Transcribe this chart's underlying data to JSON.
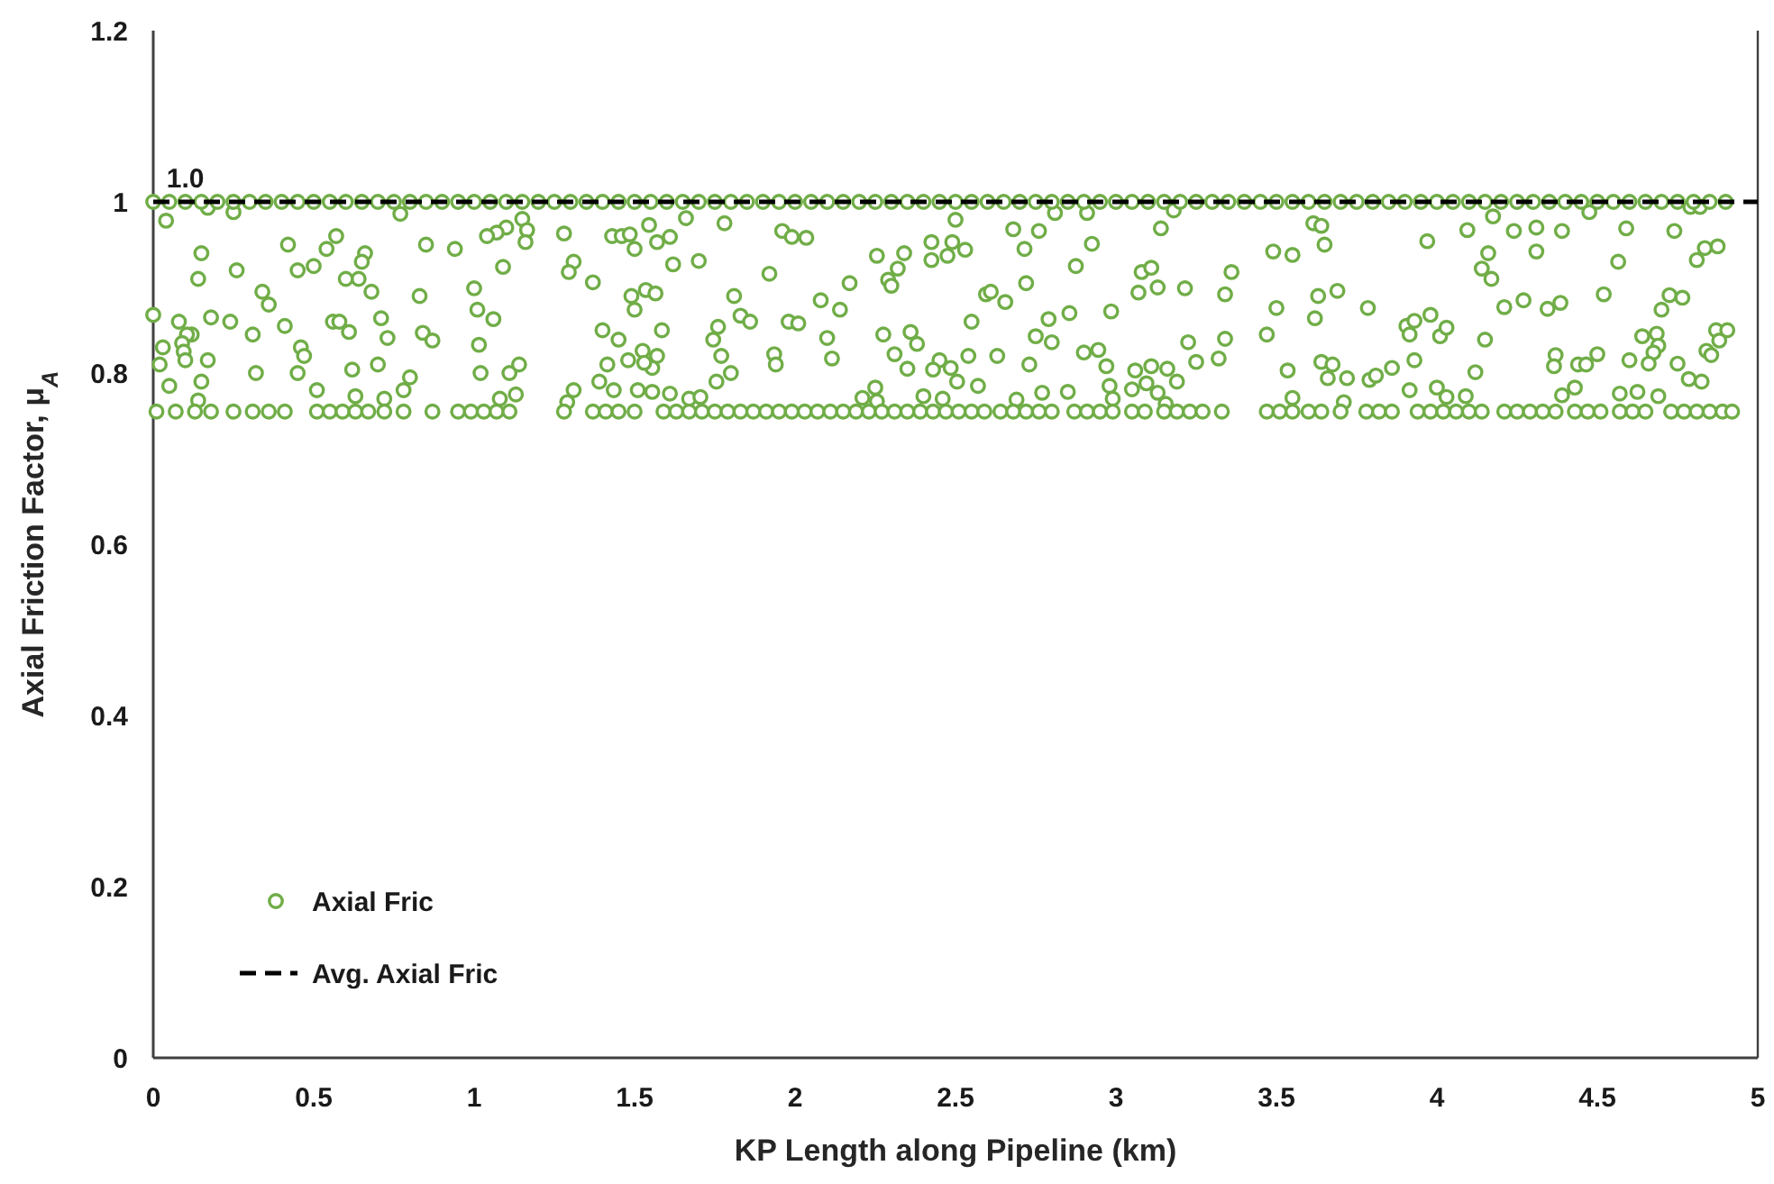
{
  "chart_data": {
    "type": "scatter",
    "xlabel": "KP Length along Pipeline (km)",
    "ylabel": "Axial Friction Factor, μ$_{A}$",
    "xlim": [
      0,
      5
    ],
    "xticks": [
      0,
      0.5,
      1,
      1.5,
      2,
      2.5,
      3,
      3.5,
      4,
      4.5,
      5
    ],
    "ylim": [
      0,
      1.2
    ],
    "yticks": [
      0,
      0.2,
      0.4,
      0.6,
      0.8,
      1,
      1.2
    ],
    "grid": false,
    "legend": "bottom left",
    "marker": "circle",
    "annotations": [
      {
        "text": "1.0",
        "x": 0.1,
        "y": 1.0
      }
    ],
    "series": [
      {
        "name": "Axial Fric",
        "color": "#70ad47",
        "x": [
          0.04,
          0.15,
          0.14,
          0.26,
          0.42,
          0.57,
          0.54,
          0.5,
          0.45,
          0.66,
          0.65,
          0.64,
          0.6,
          0.68,
          0.85,
          0.94,
          0.83,
          0.34,
          0.36,
          0,
          0.08,
          0.18,
          0.24,
          0.12,
          0.105,
          0.09,
          0.03,
          0.095,
          0.02,
          0.1,
          0.17,
          0.05,
          0.15,
          0.31,
          0.41,
          0.46,
          0.47,
          0.32,
          0.45,
          0.51,
          0.56,
          0.58,
          0.61,
          0.71,
          0.73,
          0.62,
          0.7,
          0.63,
          0.78,
          0.8,
          0.84,
          0.87,
          0.72,
          0.14,
          0.17,
          0.25,
          0.77,
          1.15,
          1.165,
          1.16,
          1.1,
          1.07,
          1.04,
          1.28,
          1.43,
          1.46,
          1.485,
          1.545,
          1.57,
          1.61,
          1.5,
          1.66,
          1.78,
          1.96,
          1.99,
          1.09,
          1.31,
          1.295,
          1.37,
          1.62,
          1.7,
          1.92,
          1,
          1.01,
          1.06,
          1.015,
          1.02,
          1.11,
          1.14,
          1.08,
          1.13,
          1.31,
          1.29,
          1.4,
          1.45,
          1.49,
          1.535,
          1.565,
          1.5,
          1.585,
          1.525,
          1.57,
          1.555,
          1.53,
          1.48,
          1.415,
          1.39,
          1.435,
          1.51,
          1.555,
          1.61,
          1.67,
          1.705,
          1.81,
          1.83,
          1.86,
          1.76,
          1.745,
          1.77,
          1.8,
          1.755,
          1.935,
          1.94,
          1.98,
          2.01,
          2.035,
          2.5,
          2.425,
          2.49,
          2.53,
          2.475,
          2.425,
          2.255,
          2.34,
          2.32,
          2.17,
          2.29,
          2.3,
          2.68,
          2.76,
          2.81,
          2.91,
          2.715,
          2.925,
          2.875,
          2.72,
          2.595,
          2.61,
          2.655,
          2.08,
          2.14,
          2.55,
          2.1,
          2.115,
          2.275,
          2.36,
          2.38,
          2.31,
          2.35,
          2.45,
          2.43,
          2.485,
          2.54,
          2.63,
          2.505,
          2.57,
          2.79,
          2.855,
          2.985,
          2.75,
          2.8,
          2.73,
          2.9,
          2.945,
          2.97,
          2.98,
          2.99,
          2.25,
          2.21,
          2.255,
          2.4,
          2.46,
          2.69,
          2.77,
          2.85,
          3.18,
          3.14,
          3.615,
          3.64,
          3.65,
          3.97,
          3.49,
          3.55,
          3.08,
          3.11,
          3.07,
          3.13,
          3.215,
          3.36,
          3.34,
          3.69,
          3.63,
          3.5,
          3.62,
          3.785,
          3.47,
          3.225,
          3.34,
          3.32,
          3.25,
          3.06,
          3.11,
          3.16,
          3.095,
          3.19,
          3.05,
          3.13,
          3.155,
          3.535,
          3.64,
          3.675,
          3.66,
          3.72,
          3.79,
          3.81,
          3.86,
          3.93,
          3.905,
          3.93,
          3.98,
          3.915,
          4.01,
          4.03,
          3.915,
          4,
          4.03,
          3.71,
          3.55,
          4.175,
          4.095,
          4.24,
          4.31,
          4.39,
          4.475,
          4.59,
          4.74,
          4.79,
          4.82,
          4.16,
          4.31,
          4.14,
          4.17,
          4.565,
          4.81,
          4.835,
          4.875,
          4.21,
          4.27,
          4.345,
          4.385,
          4.52,
          4.725,
          4.765,
          4.7,
          4.15,
          4.64,
          4.685,
          4.69,
          4.675,
          4.87,
          4.905,
          4.88,
          4.84,
          4.855,
          4.37,
          4.365,
          4.44,
          4.465,
          4.5,
          4.6,
          4.66,
          4.75,
          4.785,
          4.825,
          4.12,
          4.43,
          4.39,
          4.57,
          4.625,
          4.69,
          4.09,
          0.01,
          0.07,
          0.13,
          0.18,
          0.25,
          0.31,
          0.36,
          0.41,
          0.51,
          0.55,
          0.59,
          0.63,
          0.67,
          0.72,
          0.78,
          0.87,
          0.95,
          0.99,
          1.03,
          1.07,
          1.11,
          1.28,
          1.37,
          1.41,
          1.45,
          1.5,
          1.59,
          1.63,
          1.67,
          1.71,
          1.75,
          1.79,
          1.83,
          1.87,
          1.91,
          1.95,
          1.99,
          2.03,
          2.07,
          2.11,
          2.15,
          2.19,
          2.23,
          2.27,
          2.31,
          2.35,
          2.39,
          2.43,
          2.47,
          2.51,
          2.55,
          2.59,
          2.64,
          2.68,
          2.72,
          2.76,
          2.8,
          2.87,
          2.91,
          2.95,
          2.99,
          3.05,
          3.09,
          3.15,
          3.19,
          3.23,
          3.27,
          3.33,
          3.47,
          3.51,
          3.55,
          3.6,
          3.64,
          3.7,
          3.78,
          3.82,
          3.86,
          3.94,
          3.98,
          4.02,
          4.06,
          4.1,
          4.14,
          4.21,
          4.25,
          4.29,
          4.33,
          4.37,
          4.43,
          4.47,
          4.51,
          4.57,
          4.61,
          4.65,
          4.73,
          4.77,
          4.81,
          4.85,
          4.89,
          4.92,
          0,
          0.05,
          0.1,
          0.15,
          0.2,
          0.25,
          0.3,
          0.35,
          0.4,
          0.45,
          0.5,
          0.55,
          0.6,
          0.65,
          0.7,
          0.75,
          0.8,
          0.85,
          0.9,
          0.95,
          1,
          1.05,
          1.1,
          1.15,
          1.2,
          1.25,
          1.3,
          1.35,
          1.4,
          1.45,
          1.5,
          1.55,
          1.6,
          1.65,
          1.7,
          1.75,
          1.8,
          1.85,
          1.9,
          1.95,
          2,
          2.05,
          2.1,
          2.15,
          2.2,
          2.25,
          2.3,
          2.35,
          2.4,
          2.45,
          2.5,
          2.55,
          2.6,
          2.65,
          2.7,
          2.75,
          2.8,
          2.85,
          2.9,
          2.95,
          3,
          3.05,
          3.1,
          3.15,
          3.2,
          3.25,
          3.3,
          3.35,
          3.4,
          3.45,
          3.5,
          3.55,
          3.6,
          3.65,
          3.7,
          3.75,
          3.8,
          3.85,
          3.9,
          3.95,
          4,
          4.05,
          4.1,
          4.15,
          4.2,
          4.25,
          4.3,
          4.35,
          4.4,
          4.45,
          4.5,
          4.55,
          4.6,
          4.65,
          4.7,
          4.75,
          4.8,
          4.85,
          4.9
        ],
        "values": [
          0.978,
          0.94,
          0.91,
          0.92,
          0.95,
          0.96,
          0.945,
          0.925,
          0.92,
          0.94,
          0.93,
          0.91,
          0.91,
          0.895,
          0.95,
          0.945,
          0.89,
          0.895,
          0.88,
          0.868,
          0.86,
          0.865,
          0.86,
          0.845,
          0.845,
          0.835,
          0.83,
          0.825,
          0.81,
          0.815,
          0.815,
          0.785,
          0.79,
          0.845,
          0.855,
          0.83,
          0.82,
          0.8,
          0.8,
          0.78,
          0.86,
          0.86,
          0.848,
          0.864,
          0.841,
          0.804,
          0.81,
          0.773,
          0.78,
          0.795,
          0.847,
          0.838,
          0.77,
          0.768,
          0.993,
          0.988,
          0.986,
          0.98,
          0.967,
          0.953,
          0.97,
          0.964,
          0.96,
          0.963,
          0.96,
          0.96,
          0.962,
          0.973,
          0.953,
          0.959,
          0.945,
          0.981,
          0.975,
          0.966,
          0.959,
          0.924,
          0.93,
          0.918,
          0.906,
          0.927,
          0.931,
          0.916,
          0.899,
          0.874,
          0.863,
          0.833,
          0.8,
          0.8,
          0.81,
          0.77,
          0.775,
          0.78,
          0.766,
          0.85,
          0.839,
          0.89,
          0.897,
          0.893,
          0.874,
          0.85,
          0.826,
          0.82,
          0.806,
          0.812,
          0.815,
          0.81,
          0.79,
          0.78,
          0.78,
          0.778,
          0.776,
          0.77,
          0.772,
          0.89,
          0.867,
          0.86,
          0.854,
          0.839,
          0.82,
          0.8,
          0.79,
          0.822,
          0.81,
          0.86,
          0.858,
          0.958,
          0.979,
          0.953,
          0.953,
          0.944,
          0.937,
          0.932,
          0.937,
          0.94,
          0.922,
          0.905,
          0.909,
          0.902,
          0.968,
          0.966,
          0.987,
          0.987,
          0.945,
          0.951,
          0.925,
          0.905,
          0.892,
          0.895,
          0.883,
          0.885,
          0.874,
          0.86,
          0.841,
          0.817,
          0.845,
          0.848,
          0.834,
          0.822,
          0.805,
          0.815,
          0.804,
          0.806,
          0.82,
          0.82,
          0.79,
          0.785,
          0.863,
          0.87,
          0.872,
          0.843,
          0.836,
          0.81,
          0.824,
          0.827,
          0.808,
          0.785,
          0.77,
          0.783,
          0.771,
          0.767,
          0.773,
          0.77,
          0.769,
          0.777,
          0.778,
          0.99,
          0.969,
          0.975,
          0.972,
          0.95,
          0.954,
          0.942,
          0.938,
          0.918,
          0.923,
          0.894,
          0.9,
          0.899,
          0.918,
          0.892,
          0.896,
          0.89,
          0.876,
          0.864,
          0.876,
          0.845,
          0.836,
          0.84,
          0.817,
          0.813,
          0.803,
          0.808,
          0.805,
          0.788,
          0.79,
          0.781,
          0.777,
          0.764,
          0.803,
          0.813,
          0.81,
          0.794,
          0.794,
          0.792,
          0.797,
          0.806,
          0.815,
          0.855,
          0.861,
          0.868,
          0.845,
          0.843,
          0.853,
          0.78,
          0.783,
          0.772,
          0.766,
          0.771,
          0.983,
          0.967,
          0.966,
          0.97,
          0.966,
          0.988,
          0.969,
          0.966,
          0.994,
          0.994,
          0.94,
          0.942,
          0.922,
          0.91,
          0.93,
          0.932,
          0.946,
          0.948,
          0.877,
          0.885,
          0.875,
          0.882,
          0.892,
          0.891,
          0.888,
          0.874,
          0.839,
          0.843,
          0.846,
          0.832,
          0.824,
          0.85,
          0.85,
          0.838,
          0.826,
          0.821,
          0.821,
          0.808,
          0.81,
          0.81,
          0.822,
          0.815,
          0.811,
          0.811,
          0.793,
          0.79,
          0.801,
          0.783,
          0.774,
          0.776,
          0.778,
          0.773,
          0.773,
          0.755,
          0.755,
          0.755,
          0.755,
          0.755,
          0.755,
          0.755,
          0.755,
          0.755,
          0.755,
          0.755,
          0.755,
          0.755,
          0.755,
          0.755,
          0.755,
          0.755,
          0.755,
          0.755,
          0.755,
          0.755,
          0.755,
          0.755,
          0.755,
          0.755,
          0.755,
          0.755,
          0.755,
          0.755,
          0.755,
          0.755,
          0.755,
          0.755,
          0.755,
          0.755,
          0.755,
          0.755,
          0.755,
          0.755,
          0.755,
          0.755,
          0.755,
          0.755,
          0.755,
          0.755,
          0.755,
          0.755,
          0.755,
          0.755,
          0.755,
          0.755,
          0.755,
          0.755,
          0.755,
          0.755,
          0.755,
          0.755,
          0.755,
          0.755,
          0.755,
          0.755,
          0.755,
          0.755,
          0.755,
          0.755,
          0.755,
          0.755,
          0.755,
          0.755,
          0.755,
          0.755,
          0.755,
          0.755,
          0.755,
          0.755,
          0.755,
          0.755,
          0.755,
          0.755,
          0.755,
          0.755,
          0.755,
          0.755,
          0.755,
          0.755,
          0.755,
          0.755,
          0.755,
          0.755,
          0.755,
          0.755,
          0.755,
          0.755,
          0.755,
          0.755,
          0.755,
          0.755,
          0.755,
          0.755,
          0.755,
          1,
          1,
          1,
          1,
          1,
          1,
          1,
          1,
          1,
          1,
          1,
          1,
          1,
          1,
          1,
          1,
          1,
          1,
          1,
          1,
          1,
          1,
          1,
          1,
          1,
          1,
          1,
          1,
          1,
          1,
          1,
          1,
          1,
          1,
          1,
          1,
          1,
          1,
          1,
          1,
          1,
          1,
          1,
          1,
          1,
          1,
          1,
          1,
          1,
          1,
          1,
          1,
          1,
          1,
          1,
          1,
          1,
          1,
          1,
          1,
          1,
          1,
          1,
          1,
          1,
          1,
          1,
          1,
          1,
          1,
          1,
          1,
          1,
          1,
          1,
          1,
          1,
          1,
          1,
          1,
          1,
          1,
          1,
          1,
          1,
          1,
          1,
          1,
          1,
          1,
          1,
          1,
          1,
          1,
          1,
          1,
          1,
          1,
          1
        ]
      },
      {
        "name": "Avg. Axial Fric",
        "type": "line",
        "color": "#000000",
        "line_style": "dashed",
        "marker": "none",
        "x": [
          0,
          5
        ],
        "values": [
          1,
          1
        ]
      }
    ]
  }
}
